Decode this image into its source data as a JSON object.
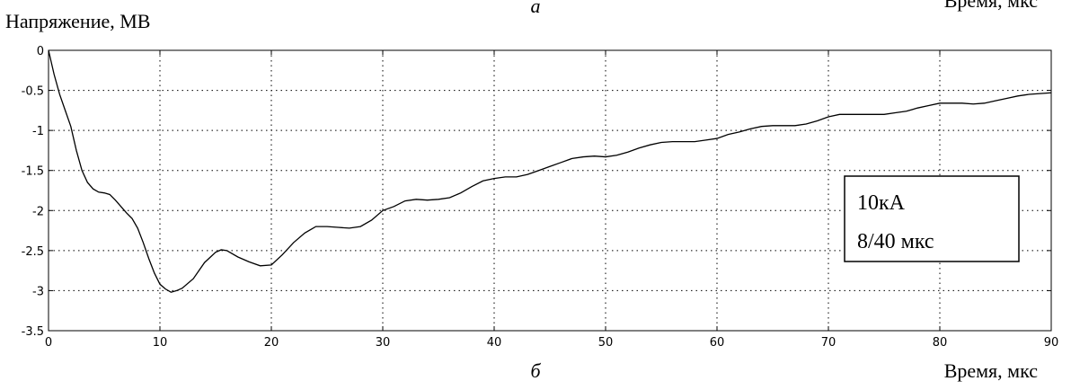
{
  "figure": {
    "caption_top": "а",
    "caption_top_right": "Время, мкс",
    "caption_bottom": "б"
  },
  "chart_data": {
    "type": "line",
    "title": "",
    "ylabel": "Напряжение, МВ",
    "xlabel": "Время, мкс",
    "xlim": [
      0,
      90
    ],
    "ylim": [
      -3.5,
      0
    ],
    "xticks": [
      0,
      10,
      20,
      30,
      40,
      50,
      60,
      70,
      80,
      90
    ],
    "yticks": [
      0,
      -0.5,
      -1,
      -1.5,
      -2,
      -2.5,
      -3,
      -3.5
    ],
    "xtick_labels": [
      "0",
      "10",
      "20",
      "30",
      "40",
      "50",
      "60",
      "70",
      "80",
      "90"
    ],
    "ytick_labels": [
      "0",
      "-0.5",
      "-1",
      "-1.5",
      "-2",
      "-2.5",
      "-3",
      "-3.5"
    ],
    "grid": true,
    "line_color": "#000000",
    "annotation": {
      "lines": [
        "10кА",
        "8/40 мкс"
      ],
      "placement": "right"
    },
    "series": [
      {
        "x": [
          0,
          0.5,
          1,
          1.5,
          2,
          2.5,
          3,
          3.5,
          4,
          4.5,
          5,
          5.5,
          6,
          6.5,
          7,
          7.5,
          8,
          8.5,
          9,
          9.5,
          10,
          10.5,
          11,
          11.5,
          12,
          13,
          14,
          15,
          15.5,
          16,
          17,
          18,
          19,
          20,
          21,
          22,
          23,
          24,
          25,
          26,
          27,
          28,
          29,
          30,
          31,
          32,
          33,
          34,
          35,
          36,
          37,
          38,
          39,
          40,
          41,
          42,
          43,
          44,
          45,
          46,
          47,
          48,
          49,
          50,
          51,
          52,
          53,
          54,
          55,
          56,
          57,
          58,
          59,
          60,
          61,
          62,
          63,
          64,
          65,
          66,
          67,
          68,
          69,
          70,
          71,
          72,
          73,
          74,
          75,
          76,
          77,
          78,
          79,
          80,
          81,
          82,
          83,
          84,
          85,
          86,
          87,
          88,
          89,
          90
        ],
        "y": [
          0,
          -0.3,
          -0.55,
          -0.75,
          -0.95,
          -1.25,
          -1.5,
          -1.65,
          -1.73,
          -1.77,
          -1.78,
          -1.8,
          -1.87,
          -1.95,
          -2.03,
          -2.1,
          -2.22,
          -2.4,
          -2.6,
          -2.78,
          -2.92,
          -2.98,
          -3.02,
          -3.0,
          -2.97,
          -2.85,
          -2.65,
          -2.52,
          -2.49,
          -2.5,
          -2.58,
          -2.64,
          -2.69,
          -2.68,
          -2.55,
          -2.4,
          -2.28,
          -2.2,
          -2.2,
          -2.21,
          -2.22,
          -2.2,
          -2.12,
          -2.0,
          -1.95,
          -1.88,
          -1.86,
          -1.87,
          -1.86,
          -1.84,
          -1.78,
          -1.7,
          -1.63,
          -1.6,
          -1.58,
          -1.58,
          -1.55,
          -1.5,
          -1.45,
          -1.4,
          -1.35,
          -1.33,
          -1.32,
          -1.33,
          -1.31,
          -1.27,
          -1.22,
          -1.18,
          -1.15,
          -1.14,
          -1.14,
          -1.14,
          -1.12,
          -1.1,
          -1.05,
          -1.02,
          -0.98,
          -0.95,
          -0.94,
          -0.94,
          -0.94,
          -0.92,
          -0.88,
          -0.83,
          -0.8,
          -0.8,
          -0.8,
          -0.8,
          -0.8,
          -0.78,
          -0.76,
          -0.72,
          -0.69,
          -0.66,
          -0.66,
          -0.66,
          -0.67,
          -0.66,
          -0.63,
          -0.6,
          -0.57,
          -0.55,
          -0.54,
          -0.53
        ]
      }
    ]
  }
}
